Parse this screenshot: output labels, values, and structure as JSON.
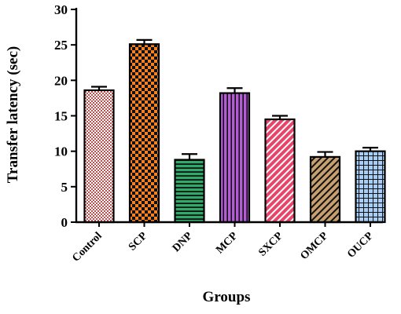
{
  "chart_data": {
    "type": "bar",
    "title": "",
    "xlabel": "Groups",
    "ylabel": "Transfer latency (sec)",
    "ylim": [
      0,
      30
    ],
    "yticks": [
      0,
      5,
      10,
      15,
      20,
      25,
      30
    ],
    "categories": [
      "Control",
      "SCP",
      "DNP",
      "MCP",
      "SXCP",
      "OMCP",
      "OUCP"
    ],
    "values": [
      18.6,
      25.1,
      8.8,
      18.2,
      14.5,
      9.2,
      10.0
    ],
    "errors": [
      0.5,
      0.6,
      0.8,
      0.7,
      0.5,
      0.7,
      0.5
    ],
    "fills": [
      {
        "pattern": "checker-fine",
        "color": "#c0504d",
        "bg": "#ffffff"
      },
      {
        "pattern": "checker-coarse",
        "color": "#f5821f",
        "bg": "#111111"
      },
      {
        "pattern": "horizontal-lines",
        "color": "#2eaa6a",
        "bg": "#111111"
      },
      {
        "pattern": "vertical-lines",
        "color": "#b45cd6",
        "bg": "#111111"
      },
      {
        "pattern": "diagonal-lines",
        "color": "#e8446a",
        "bg": "#ffffff"
      },
      {
        "pattern": "diagonal-lines",
        "color": "#c8a070",
        "bg": "#111111"
      },
      {
        "pattern": "grid",
        "color": "#a8cef5",
        "bg": "#111111"
      }
    ],
    "grid": false,
    "legend": "none"
  }
}
